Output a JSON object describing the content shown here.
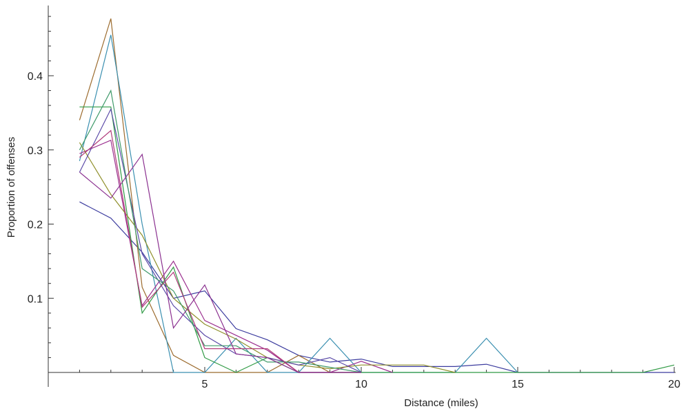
{
  "chart_data": {
    "type": "line",
    "title": "",
    "xlabel": "Distance (miles)",
    "ylabel": "Proportion of offenses",
    "xlim": [
      0,
      20
    ],
    "ylim": [
      0,
      0.5
    ],
    "x_ticks": [
      5,
      10,
      15,
      20
    ],
    "y_ticks": [
      0.1,
      0.2,
      0.3,
      0.4
    ],
    "x_minor_step": 1,
    "y_minor_step": 0.02,
    "grid": false,
    "legend": "none",
    "series": [
      {
        "color": "#3b3b9e",
        "points": [
          [
            1,
            0.23
          ],
          [
            2,
            0.208
          ],
          [
            3,
            0.162
          ],
          [
            4,
            0.1
          ],
          [
            5,
            0.11
          ],
          [
            6,
            0.059
          ],
          [
            7,
            0.044
          ],
          [
            8,
            0.023
          ],
          [
            9,
            0.014
          ],
          [
            10,
            0.018
          ],
          [
            11,
            0.008
          ],
          [
            12,
            0.008
          ],
          [
            13,
            0.008
          ],
          [
            14,
            0.011
          ],
          [
            15,
            0.0
          ],
          [
            20,
            0.0
          ]
        ]
      },
      {
        "color": "#9b6a2c",
        "points": [
          [
            1,
            0.34
          ],
          [
            2,
            0.477
          ],
          [
            3,
            0.115
          ],
          [
            4,
            0.023
          ],
          [
            5,
            0.0
          ],
          [
            6,
            0.0
          ],
          [
            7,
            0.0
          ],
          [
            8,
            0.023
          ],
          [
            9,
            0.0
          ],
          [
            10,
            0.0
          ]
        ]
      },
      {
        "color": "#3a8fb0",
        "points": [
          [
            1,
            0.285
          ],
          [
            2,
            0.455
          ],
          [
            3,
            0.2
          ],
          [
            4,
            0.0
          ],
          [
            5,
            0.0
          ],
          [
            6,
            0.046
          ],
          [
            7,
            0.0
          ],
          [
            8,
            0.0
          ],
          [
            9,
            0.046
          ],
          [
            10,
            0.0
          ],
          [
            13,
            0.0
          ],
          [
            14,
            0.046
          ],
          [
            15,
            0.0
          ]
        ]
      },
      {
        "color": "#2f9a44",
        "points": [
          [
            1,
            0.358
          ],
          [
            2,
            0.358
          ],
          [
            3,
            0.08
          ],
          [
            4,
            0.142
          ],
          [
            5,
            0.02
          ],
          [
            6,
            0.0
          ],
          [
            7,
            0.02
          ],
          [
            8,
            0.0
          ],
          [
            9,
            0.0
          ],
          [
            10,
            0.0
          ],
          [
            19,
            0.0
          ],
          [
            20,
            0.01
          ]
        ]
      },
      {
        "color": "#9b2f8f",
        "points": [
          [
            1,
            0.295
          ],
          [
            2,
            0.313
          ],
          [
            3,
            0.09
          ],
          [
            4,
            0.15
          ],
          [
            5,
            0.07
          ],
          [
            6,
            0.05
          ],
          [
            7,
            0.03
          ],
          [
            8,
            0.0
          ],
          [
            9,
            0.0
          ],
          [
            10,
            0.015
          ],
          [
            11,
            0.0
          ]
        ]
      },
      {
        "color": "#8f8f2a",
        "points": [
          [
            1,
            0.31
          ],
          [
            2,
            0.24
          ],
          [
            3,
            0.185
          ],
          [
            4,
            0.1
          ],
          [
            5,
            0.065
          ],
          [
            6,
            0.045
          ],
          [
            7,
            0.02
          ],
          [
            8,
            0.01
          ],
          [
            9,
            0.005
          ],
          [
            10,
            0.01
          ],
          [
            11,
            0.01
          ],
          [
            12,
            0.01
          ],
          [
            13,
            0.0
          ]
        ]
      },
      {
        "color": "#5b4aa8",
        "points": [
          [
            1,
            0.27
          ],
          [
            2,
            0.355
          ],
          [
            3,
            0.16
          ],
          [
            4,
            0.09
          ],
          [
            5,
            0.05
          ],
          [
            6,
            0.025
          ],
          [
            7,
            0.02
          ],
          [
            8,
            0.01
          ],
          [
            9,
            0.02
          ],
          [
            10,
            0.0
          ]
        ]
      },
      {
        "color": "#3f9a6a",
        "points": [
          [
            1,
            0.3
          ],
          [
            2,
            0.38
          ],
          [
            3,
            0.14
          ],
          [
            4,
            0.11
          ],
          [
            5,
            0.036
          ],
          [
            6,
            0.036
          ],
          [
            7,
            0.014
          ],
          [
            8,
            0.014
          ],
          [
            9,
            0.007
          ],
          [
            10,
            0.0
          ]
        ]
      },
      {
        "color": "#b03a7a",
        "points": [
          [
            1,
            0.29
          ],
          [
            2,
            0.326
          ],
          [
            3,
            0.088
          ],
          [
            4,
            0.135
          ],
          [
            5,
            0.032
          ],
          [
            6,
            0.032
          ],
          [
            7,
            0.032
          ],
          [
            8,
            0.0
          ],
          [
            9,
            0.0
          ],
          [
            10,
            0.0
          ]
        ]
      },
      {
        "color": "#8a2f8f",
        "points": [
          [
            1,
            0.27
          ],
          [
            2,
            0.235
          ],
          [
            3,
            0.294
          ],
          [
            4,
            0.06
          ],
          [
            5,
            0.118
          ],
          [
            6,
            0.025
          ],
          [
            7,
            0.02
          ],
          [
            8,
            0.0
          ],
          [
            9,
            0.0
          ],
          [
            10,
            0.0
          ]
        ]
      }
    ]
  }
}
